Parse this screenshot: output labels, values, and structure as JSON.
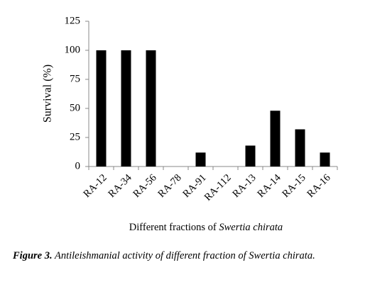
{
  "chart_data": {
    "type": "bar",
    "ylabel": "Survival  (%)",
    "xlabel": "Different fractions of ",
    "xlabel_italic": "Swertia chirata",
    "categories": [
      "RA-12",
      "RA-34",
      "RA-56",
      "RA-78",
      "RA-91",
      "RA-112",
      "RA-13",
      "RA-14",
      "RA-15",
      "RA-16"
    ],
    "values": [
      100,
      100,
      100,
      0,
      12,
      0,
      18,
      48,
      32,
      12
    ],
    "color": "#000000",
    "ylim": [
      0,
      125
    ],
    "yticks": [
      0,
      25,
      50,
      75,
      100,
      125
    ],
    "grid": false
  },
  "caption": {
    "label": "Figure 3.",
    "text": " Antileishmanial activity of different fraction of Swertia chirata."
  }
}
